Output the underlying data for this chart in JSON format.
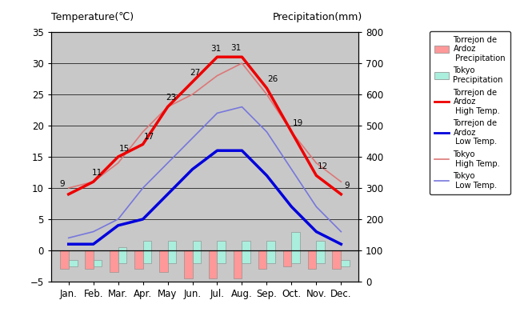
{
  "months": [
    "Jan.",
    "Feb.",
    "Mar.",
    "Apr.",
    "May",
    "Jun.",
    "Jul.",
    "Aug.",
    "Sep.",
    "Oct.",
    "Nov.",
    "Dec."
  ],
  "torrejon_high": [
    9,
    11,
    15,
    17,
    23,
    27,
    31,
    31,
    26,
    19,
    12,
    9
  ],
  "torrejon_low": [
    1,
    1,
    4,
    5,
    9,
    13,
    16,
    16,
    12,
    7,
    3,
    1
  ],
  "tokyo_high": [
    10,
    11,
    14,
    19,
    23,
    25,
    28,
    30,
    25,
    19,
    14,
    11
  ],
  "tokyo_low": [
    2,
    3,
    5,
    10,
    14,
    18,
    22,
    23,
    19,
    13,
    7,
    3
  ],
  "torrejon_precip_vals": [
    -3.0,
    -3.0,
    -3.5,
    -3.0,
    -3.5,
    -4.5,
    -4.5,
    -4.5,
    -3.0,
    -2.5,
    -3.0,
    -3.0
  ],
  "tokyo_precip_bottom": [
    -2.5,
    -2.5,
    -2.0,
    -2.0,
    -2.0,
    -2.0,
    -2.0,
    -2.0,
    -2.0,
    -2.0,
    -2.0,
    -2.5
  ],
  "tokyo_precip_top": [
    -1.5,
    -1.5,
    0.5,
    1.5,
    1.5,
    1.5,
    1.5,
    1.5,
    1.5,
    3.0,
    1.5,
    -1.5
  ],
  "title_left": "Temperature(℃)",
  "title_right": "Precipitation(mm)",
  "temp_ylim": [
    -5,
    35
  ],
  "temp_yticks": [
    -5,
    0,
    5,
    10,
    15,
    20,
    25,
    30,
    35
  ],
  "precip_yticks": [
    0,
    100,
    200,
    300,
    400,
    500,
    600,
    700,
    800
  ],
  "torrejon_high_color": "#EE0000",
  "torrejon_low_color": "#0000DD",
  "tokyo_high_color": "#DD7777",
  "tokyo_low_color": "#7777DD",
  "torrejon_precip_color": "#FF9999",
  "tokyo_precip_color": "#AAEEDD",
  "bg_color": "#C8C8C8"
}
